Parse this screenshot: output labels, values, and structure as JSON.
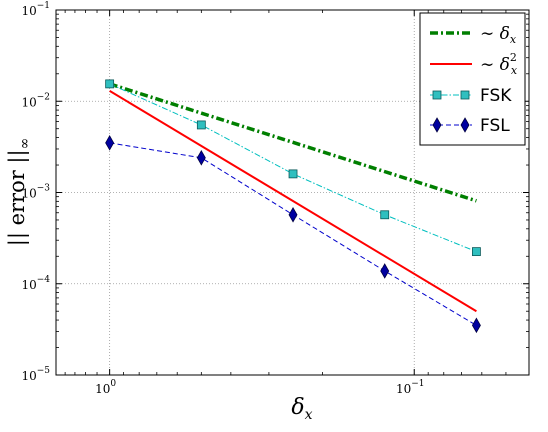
{
  "chart_data": {
    "type": "line",
    "title": "",
    "xscale": "log",
    "yscale": "log",
    "x_reversed": true,
    "grid": true,
    "legend_position": "top-right",
    "xlim": [
      1.5,
      0.042
    ],
    "ylim": [
      1e-05,
      0.1
    ],
    "xticks": [
      {
        "value": 1,
        "base": "10",
        "exp": "0"
      },
      {
        "value": 0.1,
        "base": "10",
        "exp": "−1"
      }
    ],
    "yticks": [
      {
        "value": 0.1,
        "base": "10",
        "exp": "−1"
      },
      {
        "value": 0.01,
        "base": "10",
        "exp": "−2"
      },
      {
        "value": 0.001,
        "base": "10",
        "exp": "−3"
      },
      {
        "value": 0.0001,
        "base": "10",
        "exp": "−4"
      },
      {
        "value": 1e-05,
        "base": "10",
        "exp": "−5"
      }
    ],
    "xlabel": {
      "main": "δ",
      "sub": "x"
    },
    "ylabel": {
      "left": "|| error ||",
      "sub": "∞"
    },
    "series": [
      {
        "name": "FSK",
        "color": "#00bfbf",
        "marker": "square",
        "line": "dash-dot",
        "x": [
          1,
          0.5,
          0.25,
          0.125,
          0.0625
        ],
        "y": [
          0.0155,
          0.0055,
          0.0016,
          0.00057,
          0.000225
        ]
      },
      {
        "name": "FSL",
        "color": "#0000cc",
        "marker": "diamond",
        "line": "dashed",
        "x": [
          1,
          0.5,
          0.25,
          0.125,
          0.0625
        ],
        "y": [
          0.0035,
          0.0024,
          0.00057,
          0.000138,
          3.5e-05
        ]
      }
    ],
    "reference_lines": [
      {
        "name": "∼ δ",
        "sub": "x",
        "sup": "",
        "color": "#007f00",
        "line": "dash-dot-thick",
        "x": [
          1,
          0.0625
        ],
        "y": [
          0.0155,
          0.00081
        ]
      },
      {
        "name": "∼ δ",
        "sub": "x",
        "sup": "2",
        "color": "#ff0000",
        "line": "solid",
        "x": [
          1,
          0.0625
        ],
        "y": [
          0.013,
          5e-05
        ]
      }
    ]
  }
}
